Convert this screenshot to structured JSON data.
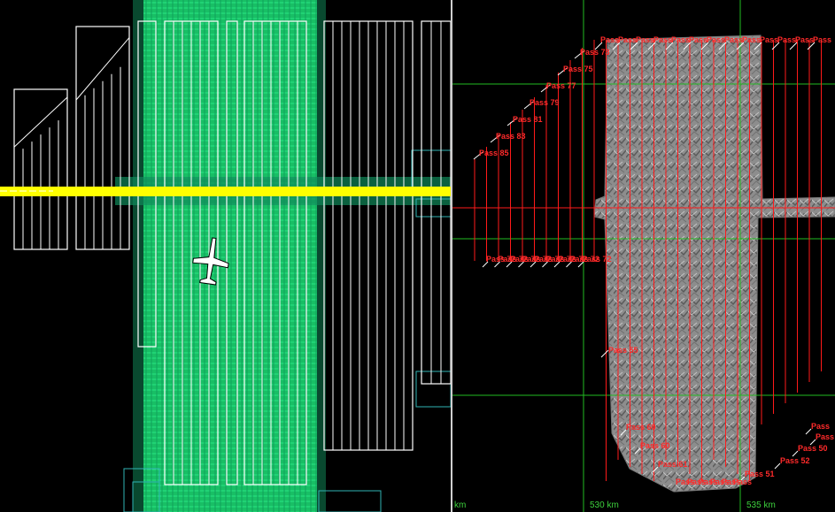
{
  "left_view": {
    "title": "",
    "flight_line_color": "#ffff00",
    "coverage_color": "#22dd77",
    "plan_color": "#ffffff",
    "aircraft_icon": "airplane-icon"
  },
  "right_view": {
    "grid_color": "#22bb22",
    "pass_color": "#ff1a1a",
    "axis": {
      "x_labels": [
        "km",
        "530 km",
        "535 km"
      ]
    },
    "top_labels": [
      "Pass 73",
      "Pass 75",
      "Pass 77",
      "Pass 79",
      "Pass 81",
      "Pass 83",
      "Pass 85"
    ],
    "upper_right_labels": [
      "Pass",
      "Pass",
      "Pass",
      "Pass",
      "Pass",
      "Pass",
      "Pass",
      "Pass",
      "Pass",
      "Pass",
      "Pass",
      "Pass",
      "Pass"
    ],
    "middle_row_label": "Pass 72",
    "middle_row_repeats": 9,
    "lower_left_label": "Pass 55",
    "bottom_labels": [
      "Pass 60",
      "Pass 60",
      "Pass 61",
      "Pass 51",
      "Pass 52",
      "Pass 50",
      "Pass 48",
      "Pass"
    ]
  }
}
